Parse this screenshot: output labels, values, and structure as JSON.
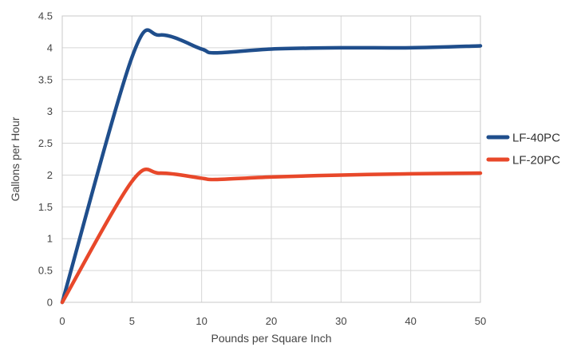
{
  "chart_data": {
    "type": "line",
    "xlabel": "Pounds per Square Inch",
    "ylabel": "Gallons per Hour",
    "xlim": [
      0,
      50
    ],
    "ylim": [
      0,
      4.5
    ],
    "x_ticks": [
      0,
      5,
      10,
      20,
      30,
      40,
      50
    ],
    "y_ticks": [
      0,
      0.5,
      1,
      1.5,
      2,
      2.5,
      3,
      3.5,
      4,
      4.5
    ],
    "x_tick_labels": [
      "0",
      "5",
      "10",
      "20",
      "30",
      "40",
      "50"
    ],
    "y_tick_labels": [
      "0",
      "0.5",
      "1",
      "1.5",
      "2",
      "2.5",
      "3",
      "3.5",
      "4",
      "4.5"
    ],
    "x_axis_note": "category-style spacing: 0, 5, 10 then 20, 30, 40, 50 equally spaced",
    "grid": true,
    "legend_position": "right",
    "smooth": true,
    "series": [
      {
        "name": "LF-40PC",
        "color": "#1f4e8c",
        "x": [
          0,
          5,
          7,
          10,
          12,
          20,
          30,
          40,
          50
        ],
        "y": [
          0,
          3.85,
          4.2,
          3.98,
          3.92,
          3.98,
          4.0,
          4.0,
          4.03
        ]
      },
      {
        "name": "LF-20PC",
        "color": "#e8482a",
        "x": [
          0,
          5,
          7,
          10,
          12,
          20,
          30,
          40,
          50
        ],
        "y": [
          0,
          1.9,
          2.03,
          1.95,
          1.93,
          1.97,
          2.0,
          2.02,
          2.03
        ]
      }
    ]
  }
}
